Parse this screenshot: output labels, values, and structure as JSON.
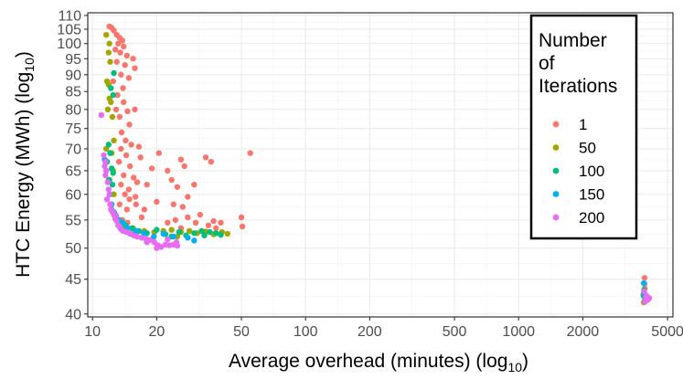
{
  "chart_data": {
    "type": "scatter",
    "title": "",
    "xlabel": "Average overhead (minutes) (log",
    "xlabel_sub": "10",
    "xlabel_end": ")",
    "ylabel": "HTC Energy (MWh) (log",
    "ylabel_sub": "10",
    "ylabel_end": ")",
    "x_scale": "log10",
    "y_scale": "log10",
    "xlim": [
      9.5,
      5300
    ],
    "ylim": [
      39.6,
      111
    ],
    "x_ticks": [
      10,
      20,
      50,
      100,
      200,
      500,
      1000,
      2000,
      5000
    ],
    "y_ticks": [
      40,
      45,
      50,
      55,
      60,
      65,
      70,
      75,
      80,
      85,
      90,
      95,
      100,
      105,
      110
    ],
    "grid": true,
    "legend": {
      "title_lines": [
        "Number",
        "of",
        "Iterations"
      ],
      "placement": "top-right"
    },
    "series": [
      {
        "name": "1",
        "color": "#F8766D",
        "points": [
          [
            12.0,
            106
          ],
          [
            12.3,
            105.5
          ],
          [
            12.6,
            104.5
          ],
          [
            13.0,
            103
          ],
          [
            13.4,
            102
          ],
          [
            13.8,
            101
          ],
          [
            13.2,
            100
          ],
          [
            14.0,
            99
          ],
          [
            12.8,
            98
          ],
          [
            13.5,
            97
          ],
          [
            14.5,
            96
          ],
          [
            15.5,
            95
          ],
          [
            13.0,
            94
          ],
          [
            14.2,
            93
          ],
          [
            15.8,
            92
          ],
          [
            13.6,
            90
          ],
          [
            14.8,
            89
          ],
          [
            12.5,
            88
          ],
          [
            13.9,
            86
          ],
          [
            13.1,
            84
          ],
          [
            14.0,
            82
          ],
          [
            12.9,
            80
          ],
          [
            14.6,
            79.5
          ],
          [
            15.8,
            80
          ],
          [
            13.4,
            78
          ],
          [
            14.9,
            76
          ],
          [
            13.7,
            74
          ],
          [
            14.3,
            72
          ],
          [
            15.2,
            71
          ],
          [
            16.5,
            70.5
          ],
          [
            13.6,
            70
          ],
          [
            14.4,
            68.5
          ],
          [
            16.8,
            68
          ],
          [
            20.5,
            69
          ],
          [
            26.0,
            67.5
          ],
          [
            13.3,
            67
          ],
          [
            15.0,
            66
          ],
          [
            19.0,
            65.5
          ],
          [
            22.5,
            65
          ],
          [
            27.0,
            66
          ],
          [
            14.0,
            64
          ],
          [
            15.6,
            63.5
          ],
          [
            13.6,
            62
          ],
          [
            14.8,
            61
          ],
          [
            16.2,
            62.5
          ],
          [
            18.0,
            62
          ],
          [
            23.5,
            63
          ],
          [
            25.0,
            61.5
          ],
          [
            30.0,
            62
          ],
          [
            14.2,
            60
          ],
          [
            14.9,
            59
          ],
          [
            15.9,
            59.5
          ],
          [
            13.4,
            58
          ],
          [
            14.5,
            57
          ],
          [
            16.0,
            58
          ],
          [
            17.5,
            57
          ],
          [
            20.0,
            58.5
          ],
          [
            24.0,
            58
          ],
          [
            26.5,
            57.5
          ],
          [
            13.8,
            55
          ],
          [
            14.6,
            54.5
          ],
          [
            17.0,
            55.5
          ],
          [
            22.5,
            54.5
          ],
          [
            24.5,
            55
          ],
          [
            28.0,
            55.5
          ],
          [
            30.5,
            54.5
          ],
          [
            32.0,
            56
          ],
          [
            35.0,
            54
          ],
          [
            38.0,
            53.5
          ],
          [
            40.0,
            54.5
          ],
          [
            50.0,
            55.5
          ],
          [
            50.5,
            53.8
          ],
          [
            55.0,
            69
          ],
          [
            36.0,
            67
          ],
          [
            34.0,
            68
          ],
          [
            28.0,
            59.5
          ],
          [
            37.0,
            54.8
          ],
          [
            26.0,
            53.5
          ],
          [
            14.2,
            53.5
          ],
          [
            15.5,
            52.5
          ],
          [
            3900,
            45.2
          ],
          [
            3900,
            44.3
          ],
          [
            3910,
            43.6
          ],
          [
            3900,
            42.8
          ]
        ]
      },
      {
        "name": "50",
        "color": "#A3A500",
        "points": [
          [
            11.6,
            103
          ],
          [
            12.0,
            100
          ],
          [
            11.9,
            97
          ],
          [
            12.1,
            94
          ],
          [
            11.7,
            88
          ],
          [
            11.9,
            87
          ],
          [
            12.0,
            83
          ],
          [
            12.2,
            82
          ],
          [
            11.8,
            80
          ],
          [
            12.4,
            78
          ],
          [
            12.6,
            72
          ],
          [
            11.6,
            70
          ],
          [
            12.3,
            69
          ],
          [
            12.5,
            65
          ],
          [
            11.9,
            63
          ],
          [
            12.6,
            60
          ],
          [
            12.3,
            57
          ],
          [
            12.8,
            55.5
          ],
          [
            14.2,
            53.8
          ],
          [
            15.5,
            53.5
          ],
          [
            17.5,
            53
          ],
          [
            19.5,
            52.8
          ],
          [
            21.5,
            53
          ],
          [
            23.5,
            53.2
          ],
          [
            26.0,
            52.8
          ],
          [
            28.5,
            53
          ],
          [
            31.0,
            52.6
          ],
          [
            34.0,
            52.9
          ],
          [
            37.0,
            52.4
          ],
          [
            40.5,
            52.8
          ],
          [
            43.0,
            52.5
          ],
          [
            25.0,
            52
          ],
          [
            3850,
            42.7
          ],
          [
            3870,
            41.6
          ]
        ]
      },
      {
        "name": "100",
        "color": "#00BF7D",
        "points": [
          [
            12.6,
            90.5
          ],
          [
            12.2,
            86
          ],
          [
            12.5,
            84
          ],
          [
            11.9,
            71
          ],
          [
            12.1,
            69
          ],
          [
            11.7,
            67
          ],
          [
            12.3,
            65.5
          ],
          [
            12.5,
            64.5
          ],
          [
            12.0,
            63
          ],
          [
            12.4,
            62
          ],
          [
            12.1,
            60
          ],
          [
            12.8,
            56
          ],
          [
            13.3,
            55
          ],
          [
            14.3,
            54
          ],
          [
            15.3,
            53.5
          ],
          [
            16.5,
            53
          ],
          [
            18.0,
            52.6
          ],
          [
            20.0,
            53.2
          ],
          [
            22.0,
            52.4
          ],
          [
            23.5,
            52
          ],
          [
            25.5,
            52.8
          ],
          [
            27.5,
            52.2
          ],
          [
            30.0,
            52.6
          ],
          [
            32.5,
            53
          ],
          [
            33.5,
            52.2
          ],
          [
            35.5,
            52.8
          ],
          [
            38.0,
            52.6
          ],
          [
            40.0,
            52.3
          ],
          [
            3880,
            43.4
          ],
          [
            3860,
            42.5
          ],
          [
            3900,
            41.8
          ]
        ]
      },
      {
        "name": "150",
        "color": "#00B0F6",
        "points": [
          [
            11.4,
            67.5
          ],
          [
            11.6,
            65
          ],
          [
            12.3,
            58
          ],
          [
            12.6,
            56.5
          ],
          [
            13.2,
            55
          ],
          [
            13.9,
            54.5
          ],
          [
            14.6,
            53.5
          ],
          [
            16.0,
            53
          ],
          [
            17.4,
            52.6
          ],
          [
            19.4,
            52
          ],
          [
            21.5,
            52.5
          ],
          [
            24.0,
            52
          ],
          [
            28.0,
            51.8
          ],
          [
            30.0,
            51.3
          ],
          [
            3870,
            44.4
          ],
          [
            3880,
            43
          ]
        ]
      },
      {
        "name": "200",
        "color": "#E76BF3",
        "points": [
          [
            11.0,
            78.5
          ],
          [
            11.3,
            68.5
          ],
          [
            11.5,
            67
          ],
          [
            11.4,
            66
          ],
          [
            11.6,
            65
          ],
          [
            11.5,
            64
          ],
          [
            11.8,
            62.5
          ],
          [
            11.9,
            61
          ],
          [
            12.0,
            60
          ],
          [
            11.7,
            59
          ],
          [
            12.1,
            58
          ],
          [
            12.2,
            57
          ],
          [
            12.4,
            56.5
          ],
          [
            12.6,
            56
          ],
          [
            12.8,
            55.2
          ],
          [
            13.0,
            54.8
          ],
          [
            13.2,
            54
          ],
          [
            13.5,
            53.5
          ],
          [
            13.9,
            53
          ],
          [
            14.4,
            52.8
          ],
          [
            15.0,
            52.5
          ],
          [
            15.6,
            52.2
          ],
          [
            16.2,
            52
          ],
          [
            17.0,
            51.8
          ],
          [
            17.8,
            51.6
          ],
          [
            18.6,
            51.4
          ],
          [
            19.5,
            51
          ],
          [
            20.2,
            50.5
          ],
          [
            21.0,
            50.2
          ],
          [
            22.0,
            50.6
          ],
          [
            23.0,
            50.5
          ],
          [
            24.0,
            50.6
          ],
          [
            25.0,
            50.4
          ],
          [
            20.0,
            50
          ],
          [
            18.0,
            51
          ],
          [
            22.5,
            51.5
          ],
          [
            24.8,
            51
          ],
          [
            13.7,
            53.2
          ],
          [
            12.9,
            55.8
          ],
          [
            3880,
            43.2
          ],
          [
            3950,
            42.3
          ],
          [
            4000,
            42.5
          ],
          [
            4100,
            42.2
          ],
          [
            4050,
            42
          ],
          [
            3920,
            41.7
          ]
        ]
      }
    ]
  }
}
